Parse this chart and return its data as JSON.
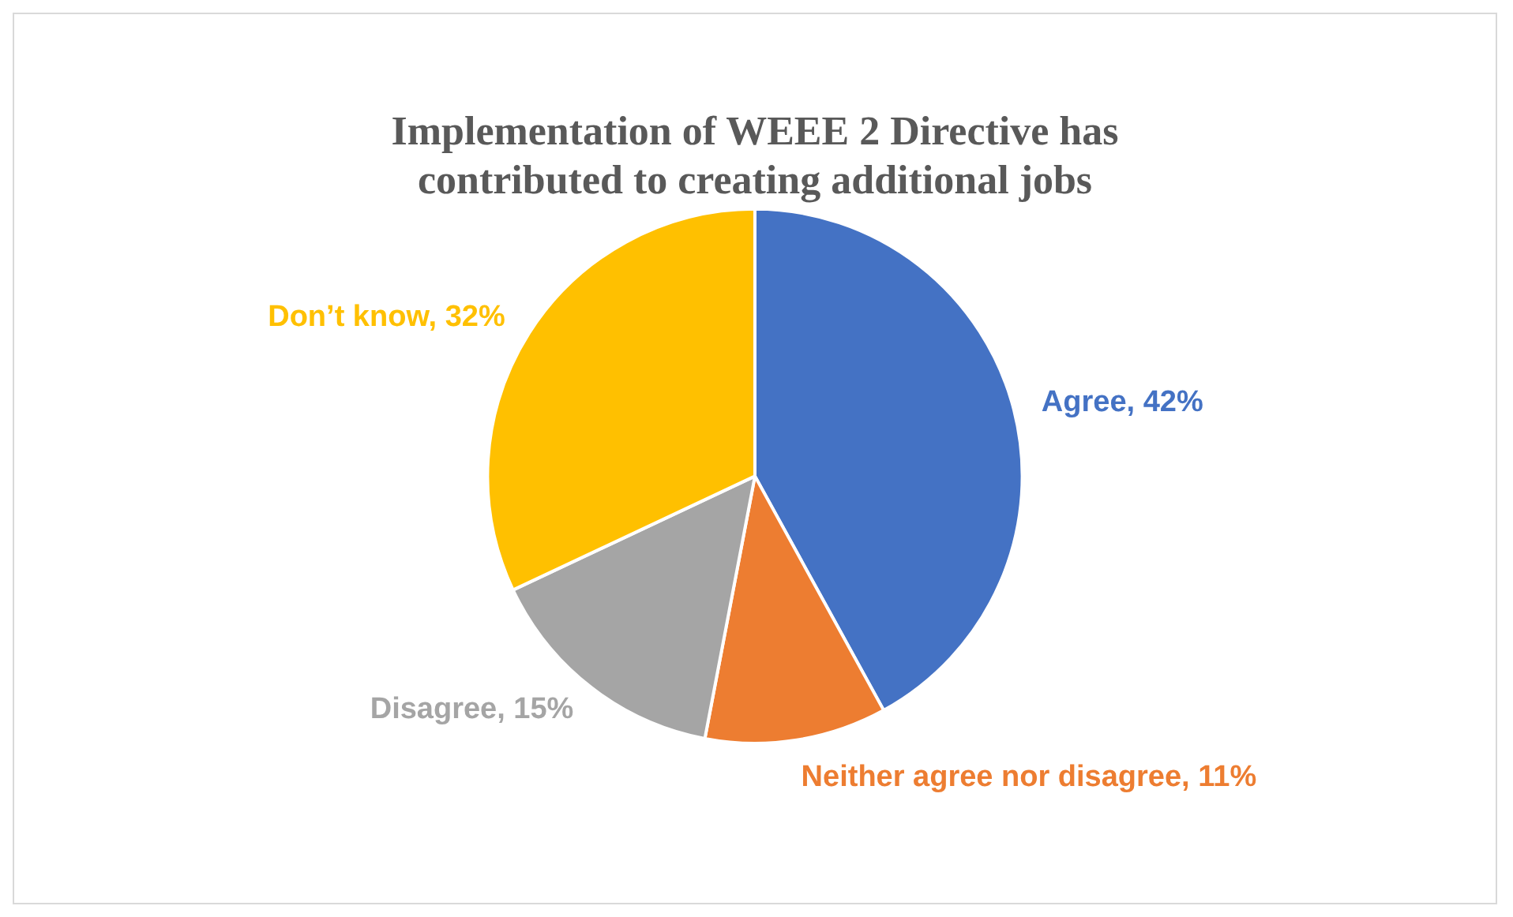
{
  "chart_data": {
    "type": "pie",
    "title": "Implementation of WEEE 2 Directive has contributed to creating additional jobs",
    "categories": [
      "Agree",
      "Neither agree nor disagree",
      "Disagree",
      "Don’t know"
    ],
    "values": [
      42,
      11,
      15,
      32
    ],
    "colors": [
      "#4472c4",
      "#ed7d31",
      "#a5a5a5",
      "#ffc000"
    ],
    "value_labels": [
      "42%",
      "11%",
      "15%",
      "32%"
    ],
    "legend": false
  }
}
